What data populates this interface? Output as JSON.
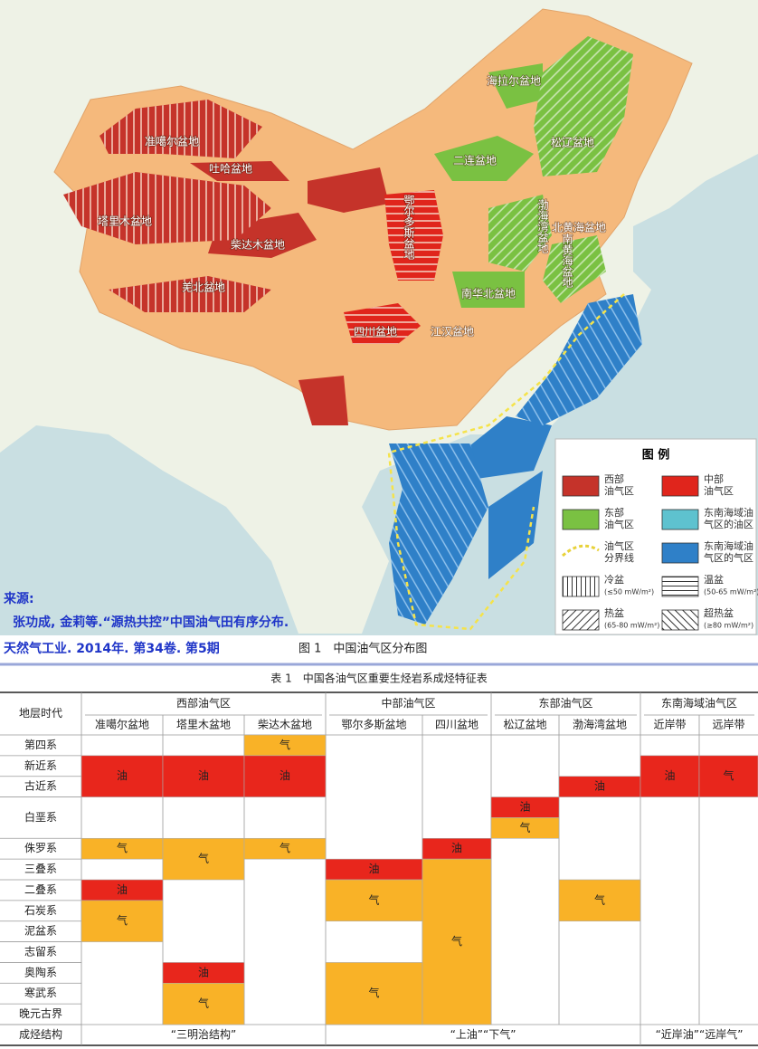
{
  "map": {
    "basins": [
      "准噶尔盆地",
      "吐哈盆地",
      "塔里木盆地",
      "柴达木盆地",
      "羌北盆地",
      "鄂尔多斯盆地",
      "四川盆地",
      "江汉盆地",
      "南华北盆地",
      "二连盆地",
      "海拉尔盆地",
      "松辽盆地",
      "渤海湾盆地",
      "北黄海盆地",
      "南黄海盆地"
    ],
    "legend": {
      "title": "图 例",
      "items": [
        {
          "lines": [
            "西部",
            "油气区"
          ]
        },
        {
          "lines": [
            "中部",
            "油气区"
          ]
        },
        {
          "lines": [
            "东部",
            "油气区"
          ]
        },
        {
          "lines": [
            "东南海域油",
            "气区的油区"
          ]
        },
        {
          "lines": [
            "油气区",
            "分界线"
          ]
        },
        {
          "lines": [
            "东南海域油",
            "气区的气区"
          ]
        },
        {
          "lines": [
            "冷盆",
            "(≤50 mW/m²)"
          ]
        },
        {
          "lines": [
            "温盆",
            "(50-65 mW/m²)"
          ]
        },
        {
          "lines": [
            "热盆",
            "(65-80 mW/m²)"
          ]
        },
        {
          "lines": [
            "超热盆",
            "(≥80 mW/m²)"
          ]
        }
      ]
    }
  },
  "source": {
    "label": "来源:",
    "lines": [
      "张功成, 金莉等.“源热共控”中国油气田有序分布.",
      "天然气工业. 2014年. 第34卷. 第5期"
    ]
  },
  "figure_caption": "图 1　中国油气区分布图",
  "table": {
    "title": "表 1　中国各油气区重要生烃岩系成烃特征表",
    "header_stub": "地层时代",
    "groups": [
      "西部油气区",
      "中部油气区",
      "东部油气区",
      "东南海域油气区"
    ],
    "columns": [
      {
        "name": "准噶尔盆地",
        "cells": [
          "油",
          "气",
          "油",
          "气"
        ]
      },
      {
        "name": "塔里木盆地",
        "cells": [
          "油",
          "气",
          "油",
          "气"
        ]
      },
      {
        "name": "柴达木盆地",
        "cells": [
          "气",
          "油",
          "气"
        ]
      },
      {
        "name": "鄂尔多斯盆地",
        "cells": [
          "油",
          "气",
          "气"
        ]
      },
      {
        "name": "四川盆地",
        "cells": [
          "油",
          "气"
        ]
      },
      {
        "name": "松辽盆地",
        "cells": [
          "油",
          "气"
        ]
      },
      {
        "name": "渤海湾盆地",
        "cells": [
          "油",
          "气"
        ]
      },
      {
        "name": "近岸带",
        "cells": [
          "油"
        ]
      },
      {
        "name": "远岸带",
        "cells": [
          "气"
        ]
      }
    ],
    "rows": [
      "第四系",
      "新近系",
      "古近系",
      "白垩系",
      "侏罗系",
      "三叠系",
      "二叠系",
      "石炭系",
      "泥盆系",
      "志留系",
      "奥陶系",
      "寒武系",
      "晚元古界"
    ],
    "footer": {
      "label": "成烃结构",
      "groups": [
        "“三明治结构”",
        "“上油”“下气”",
        "“近岸油”“远岸气”"
      ]
    }
  }
}
